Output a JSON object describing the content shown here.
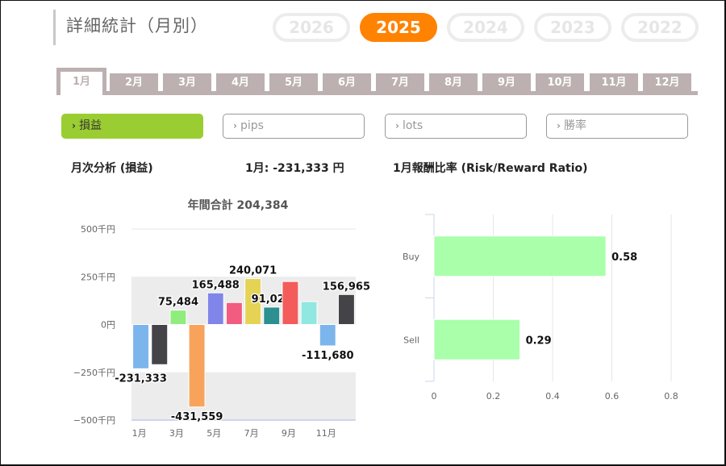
{
  "header": {
    "title": "詳細統計（月別）",
    "years": [
      {
        "label": "2026",
        "active": false
      },
      {
        "label": "2025",
        "active": true
      },
      {
        "label": "2024",
        "active": false
      },
      {
        "label": "2023",
        "active": false
      },
      {
        "label": "2022",
        "active": false
      }
    ]
  },
  "month_tabs": [
    "1月",
    "2月",
    "3月",
    "4月",
    "5月",
    "6月",
    "7月",
    "8月",
    "9月",
    "10月",
    "11月",
    "12月"
  ],
  "active_month_index": 0,
  "filters": [
    {
      "label": "損益",
      "active": true,
      "icon": "chevron-right-icon"
    },
    {
      "label": "pips",
      "active": false,
      "icon": "chevron-right-icon"
    },
    {
      "label": "lots",
      "active": false,
      "icon": "chevron-right-icon"
    },
    {
      "label": "勝率",
      "active": false,
      "icon": "chevron-right-icon"
    }
  ],
  "chev_glyph": "›",
  "left_section": {
    "title": "月次分析 (損益)",
    "month_value": "1月:  -231,333 円"
  },
  "right_section": {
    "title": "1月報酬比率 (Risk/Reward Ratio)"
  },
  "chart_data": [
    {
      "type": "bar",
      "title": "年間合計 204,384",
      "categories": [
        "1月",
        "2月",
        "3月",
        "4月",
        "5月",
        "6月",
        "7月",
        "8月",
        "9月",
        "10月",
        "11月",
        "12月"
      ],
      "values": [
        -231333,
        -210000,
        75484,
        -431559,
        165488,
        115000,
        240071,
        91024,
        225000,
        119924,
        -111680,
        156965
      ],
      "data_labels": [
        "-231,333",
        "",
        "75,484",
        "-431,559",
        "165,488",
        "",
        "240,071",
        "91,024",
        "",
        "",
        "-111,680",
        "156,965"
      ],
      "colors": [
        "#7cb5ec",
        "#434348",
        "#90ed7d",
        "#f7a35c",
        "#8085e9",
        "#f15c80",
        "#e4d354",
        "#2b908f",
        "#f45b5b",
        "#91e8e1",
        "#7cb5ec",
        "#434348"
      ],
      "ylim": [
        -500000,
        500000
      ],
      "yticks": [
        500000,
        250000,
        0,
        -250000,
        -500000
      ],
      "ytick_labels": [
        "500千円",
        "250千円",
        "0円",
        "−250千円",
        "−500千円"
      ],
      "xtick_labels": [
        "1月",
        "3月",
        "5月",
        "7月",
        "9月",
        "11月"
      ],
      "plot_bands": [
        [
          0,
          250000
        ],
        [
          -500000,
          -250000
        ]
      ],
      "band_color": "#ececec",
      "xlabel": "",
      "ylabel": "",
      "grid": true,
      "legend": "none"
    },
    {
      "type": "bar",
      "orientation": "horizontal",
      "title": "",
      "categories": [
        "Buy",
        "Sell"
      ],
      "values": [
        0.58,
        0.29
      ],
      "data_labels": [
        "0.58",
        "0.29"
      ],
      "color": "#aaffaa",
      "xlim": [
        0,
        0.8
      ],
      "xticks": [
        0,
        0.2,
        0.4,
        0.6,
        0.8
      ],
      "xtick_labels": [
        "0",
        "0.2",
        "0.4",
        "0.6",
        "0.8"
      ],
      "xlabel": "",
      "ylabel": "",
      "grid": true,
      "legend": "none"
    }
  ]
}
